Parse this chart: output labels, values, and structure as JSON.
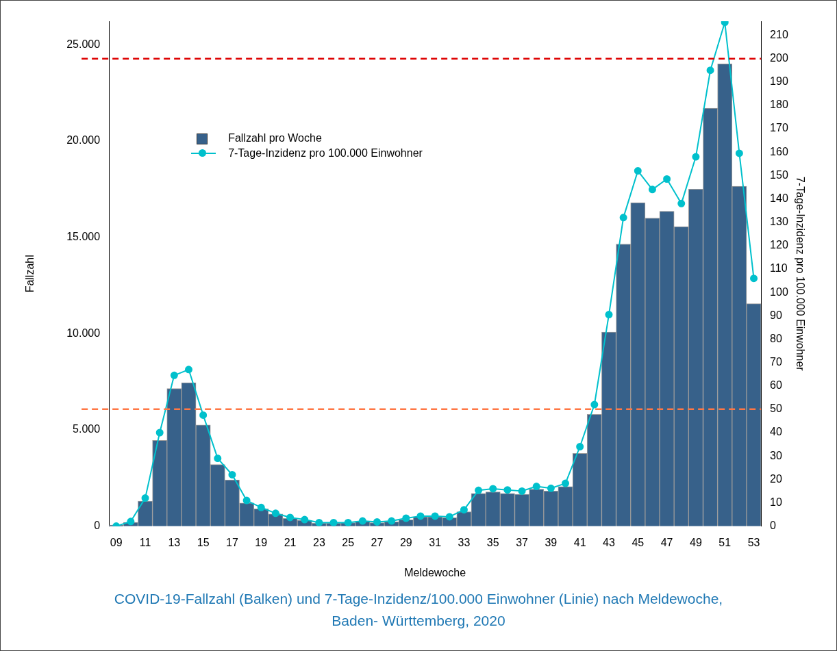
{
  "chart_data": {
    "type": "bar",
    "title": "COVID-19-Fallzahl (Balken) und 7-Tage-Inzidenz/100.000 Einwohner (Linie) nach Meldewoche,\nBaden- Württemberg, 2020",
    "xlabel": "Meldewoche",
    "ylabel": "Fallzahl",
    "y2label": "7-Tage-Inzidenz pro 100.000 Einwohner",
    "categories": [
      "09",
      null,
      "11",
      null,
      "13",
      null,
      "15",
      null,
      "17",
      null,
      "19",
      null,
      "21",
      null,
      "23",
      null,
      "25",
      null,
      "27",
      null,
      "29",
      null,
      "31",
      null,
      "33",
      null,
      "35",
      null,
      "37",
      null,
      "39",
      null,
      "41",
      null,
      "43",
      null,
      "45",
      null,
      "47",
      null,
      "49",
      null,
      "51",
      null,
      "53"
    ],
    "series": [
      {
        "name": "Fallzahl pro Woche",
        "color": "#37618a",
        "values": [
          50,
          200,
          1300,
          4450,
          7150,
          7450,
          5250,
          3200,
          2400,
          1200,
          900,
          630,
          400,
          300,
          150,
          150,
          180,
          250,
          180,
          220,
          330,
          480,
          480,
          440,
          750,
          1700,
          1780,
          1700,
          1650,
          1920,
          1820,
          2050,
          3780,
          5800,
          10080,
          14650,
          16800,
          16000,
          16350,
          15550,
          17500,
          21700,
          24000,
          17650,
          11550
        ]
      },
      {
        "name": "7-Tage-Inzidenz pro 100.000 Einwohner",
        "type": "line",
        "axis": "y2",
        "color": "#00c0cc",
        "marker": "circle",
        "values": [
          0,
          2,
          12,
          40,
          64.5,
          67,
          47.5,
          29,
          22,
          11,
          8,
          5.5,
          3.7,
          2.8,
          1.5,
          1.5,
          1.5,
          2.2,
          1.8,
          2.2,
          3.4,
          4.3,
          4.3,
          4,
          7,
          15.3,
          16,
          15.5,
          15,
          17,
          16.2,
          18.3,
          34,
          52,
          90.5,
          132,
          152,
          144,
          148.5,
          138,
          158,
          195,
          215.5,
          159.5,
          106
        ]
      }
    ],
    "ylim": [
      0,
      26220
    ],
    "yticks": [
      {
        "value": 0,
        "label": "0"
      },
      {
        "value": 5000,
        "label": "5.000"
      },
      {
        "value": 10000,
        "label": "10.000"
      },
      {
        "value": 15000,
        "label": "15.000"
      },
      {
        "value": 20000,
        "label": "20.000"
      },
      {
        "value": 25000,
        "label": "25.000"
      }
    ],
    "y2lim": [
      0,
      216
    ],
    "y2ticks": [
      0,
      10,
      20,
      30,
      40,
      50,
      60,
      70,
      80,
      90,
      100,
      110,
      120,
      130,
      140,
      150,
      160,
      170,
      180,
      190,
      200,
      210
    ],
    "ref_lines": [
      {
        "axis": "y2",
        "value": 200,
        "color": "#dd0000",
        "line_style": "dashed"
      },
      {
        "axis": "y2",
        "value": 50,
        "color": "#ff7744",
        "line_style": "dashed"
      }
    ],
    "legend": "top left",
    "grid": false
  }
}
